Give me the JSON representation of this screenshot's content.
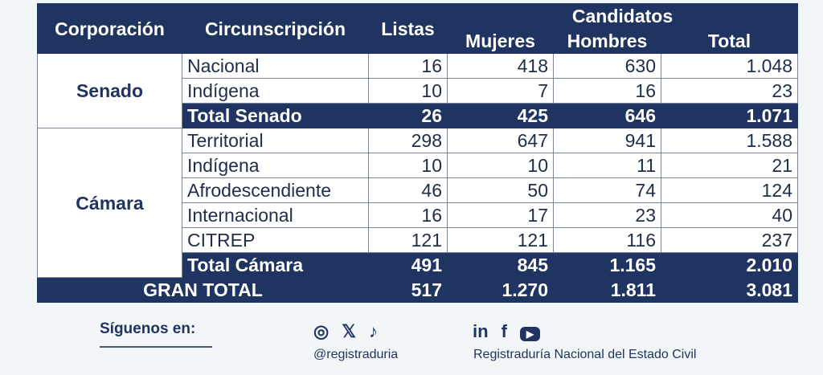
{
  "headers": {
    "corporacion": "Corporación",
    "circunscripcion": "Circunscripción",
    "listas": "Listas",
    "candidatos": "Candidatos",
    "mujeres": "Mujeres",
    "hombres": "Hombres",
    "total": "Total"
  },
  "senado": {
    "label": "Senado",
    "rows": [
      {
        "name": "Nacional",
        "listas": "16",
        "mujeres": "418",
        "hombres": "630",
        "total": "1.048"
      },
      {
        "name": "Indígena",
        "listas": "10",
        "mujeres": "7",
        "hombres": "16",
        "total": "23"
      }
    ],
    "total": {
      "name": "Total Senado",
      "listas": "26",
      "mujeres": "425",
      "hombres": "646",
      "total": "1.071"
    }
  },
  "camara": {
    "label": "Cámara",
    "rows": [
      {
        "name": "Territorial",
        "listas": "298",
        "mujeres": "647",
        "hombres": "941",
        "total": "1.588"
      },
      {
        "name": "Indígena",
        "listas": "10",
        "mujeres": "10",
        "hombres": "11",
        "total": "21"
      },
      {
        "name": "Afrodescendiente",
        "listas": "46",
        "mujeres": "50",
        "hombres": "74",
        "total": "124"
      },
      {
        "name": "Internacional",
        "listas": "16",
        "mujeres": "17",
        "hombres": "23",
        "total": "40"
      },
      {
        "name": "CITREP",
        "listas": "121",
        "mujeres": "121",
        "hombres": "116",
        "total": "237"
      }
    ],
    "total": {
      "name": "Total Cámara",
      "listas": "491",
      "mujeres": "845",
      "hombres": "1.165",
      "total": "2.010"
    }
  },
  "gran_total": {
    "name": "GRAN TOTAL",
    "listas": "517",
    "mujeres": "1.270",
    "hombres": "1.811",
    "total": "3.081"
  },
  "footer": {
    "follow": "Síguenos en:",
    "handle": "@registraduria",
    "org": "Registraduría Nacional del Estado Civil"
  }
}
